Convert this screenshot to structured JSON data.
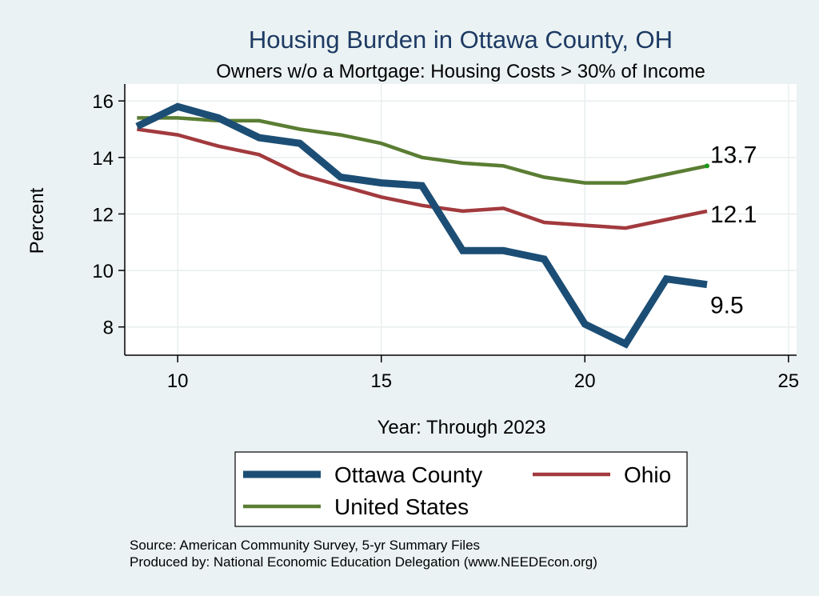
{
  "chart_data": {
    "type": "line",
    "title": "Housing Burden in Ottawa County, OH",
    "subtitle": "Owners w/o a Mortgage: Housing Costs > 30% of Income",
    "xlabel": "Year: Through 2023",
    "ylabel": "Percent",
    "xlim": [
      8.7,
      25.2
    ],
    "ylim": [
      7.0,
      16.6
    ],
    "x_ticks": [
      10,
      15,
      20,
      25
    ],
    "y_ticks": [
      8,
      10,
      12,
      14,
      16
    ],
    "grid": true,
    "legend_position": "bottom",
    "x": [
      9,
      10,
      11,
      12,
      13,
      14,
      15,
      16,
      17,
      18,
      19,
      20,
      21,
      22,
      23
    ],
    "series": [
      {
        "name": "Ottawa County",
        "color": "#1c4e75",
        "values": [
          15.1,
          15.8,
          15.4,
          14.7,
          14.5,
          13.3,
          13.1,
          13.0,
          10.7,
          10.7,
          10.4,
          8.1,
          7.4,
          9.7,
          9.5
        ],
        "end_label": "9.5"
      },
      {
        "name": "Ohio",
        "color": "#a23a3e",
        "values": [
          15.0,
          14.8,
          14.4,
          14.1,
          13.4,
          13.0,
          12.6,
          12.3,
          12.1,
          12.2,
          11.7,
          11.6,
          11.5,
          11.8,
          12.1
        ],
        "end_label": "12.1"
      },
      {
        "name": "United States",
        "color": "#5a7d33",
        "values": [
          15.4,
          15.4,
          15.3,
          15.3,
          15.0,
          14.8,
          14.5,
          14.0,
          13.8,
          13.7,
          13.3,
          13.1,
          13.1,
          13.4,
          13.7
        ],
        "end_label": "13.7"
      }
    ],
    "notes": [
      "Source: American Community Survey, 5-yr Summary Files",
      "Produced by: National Economic Education Delegation (www.NEEDEcon.org)"
    ]
  }
}
